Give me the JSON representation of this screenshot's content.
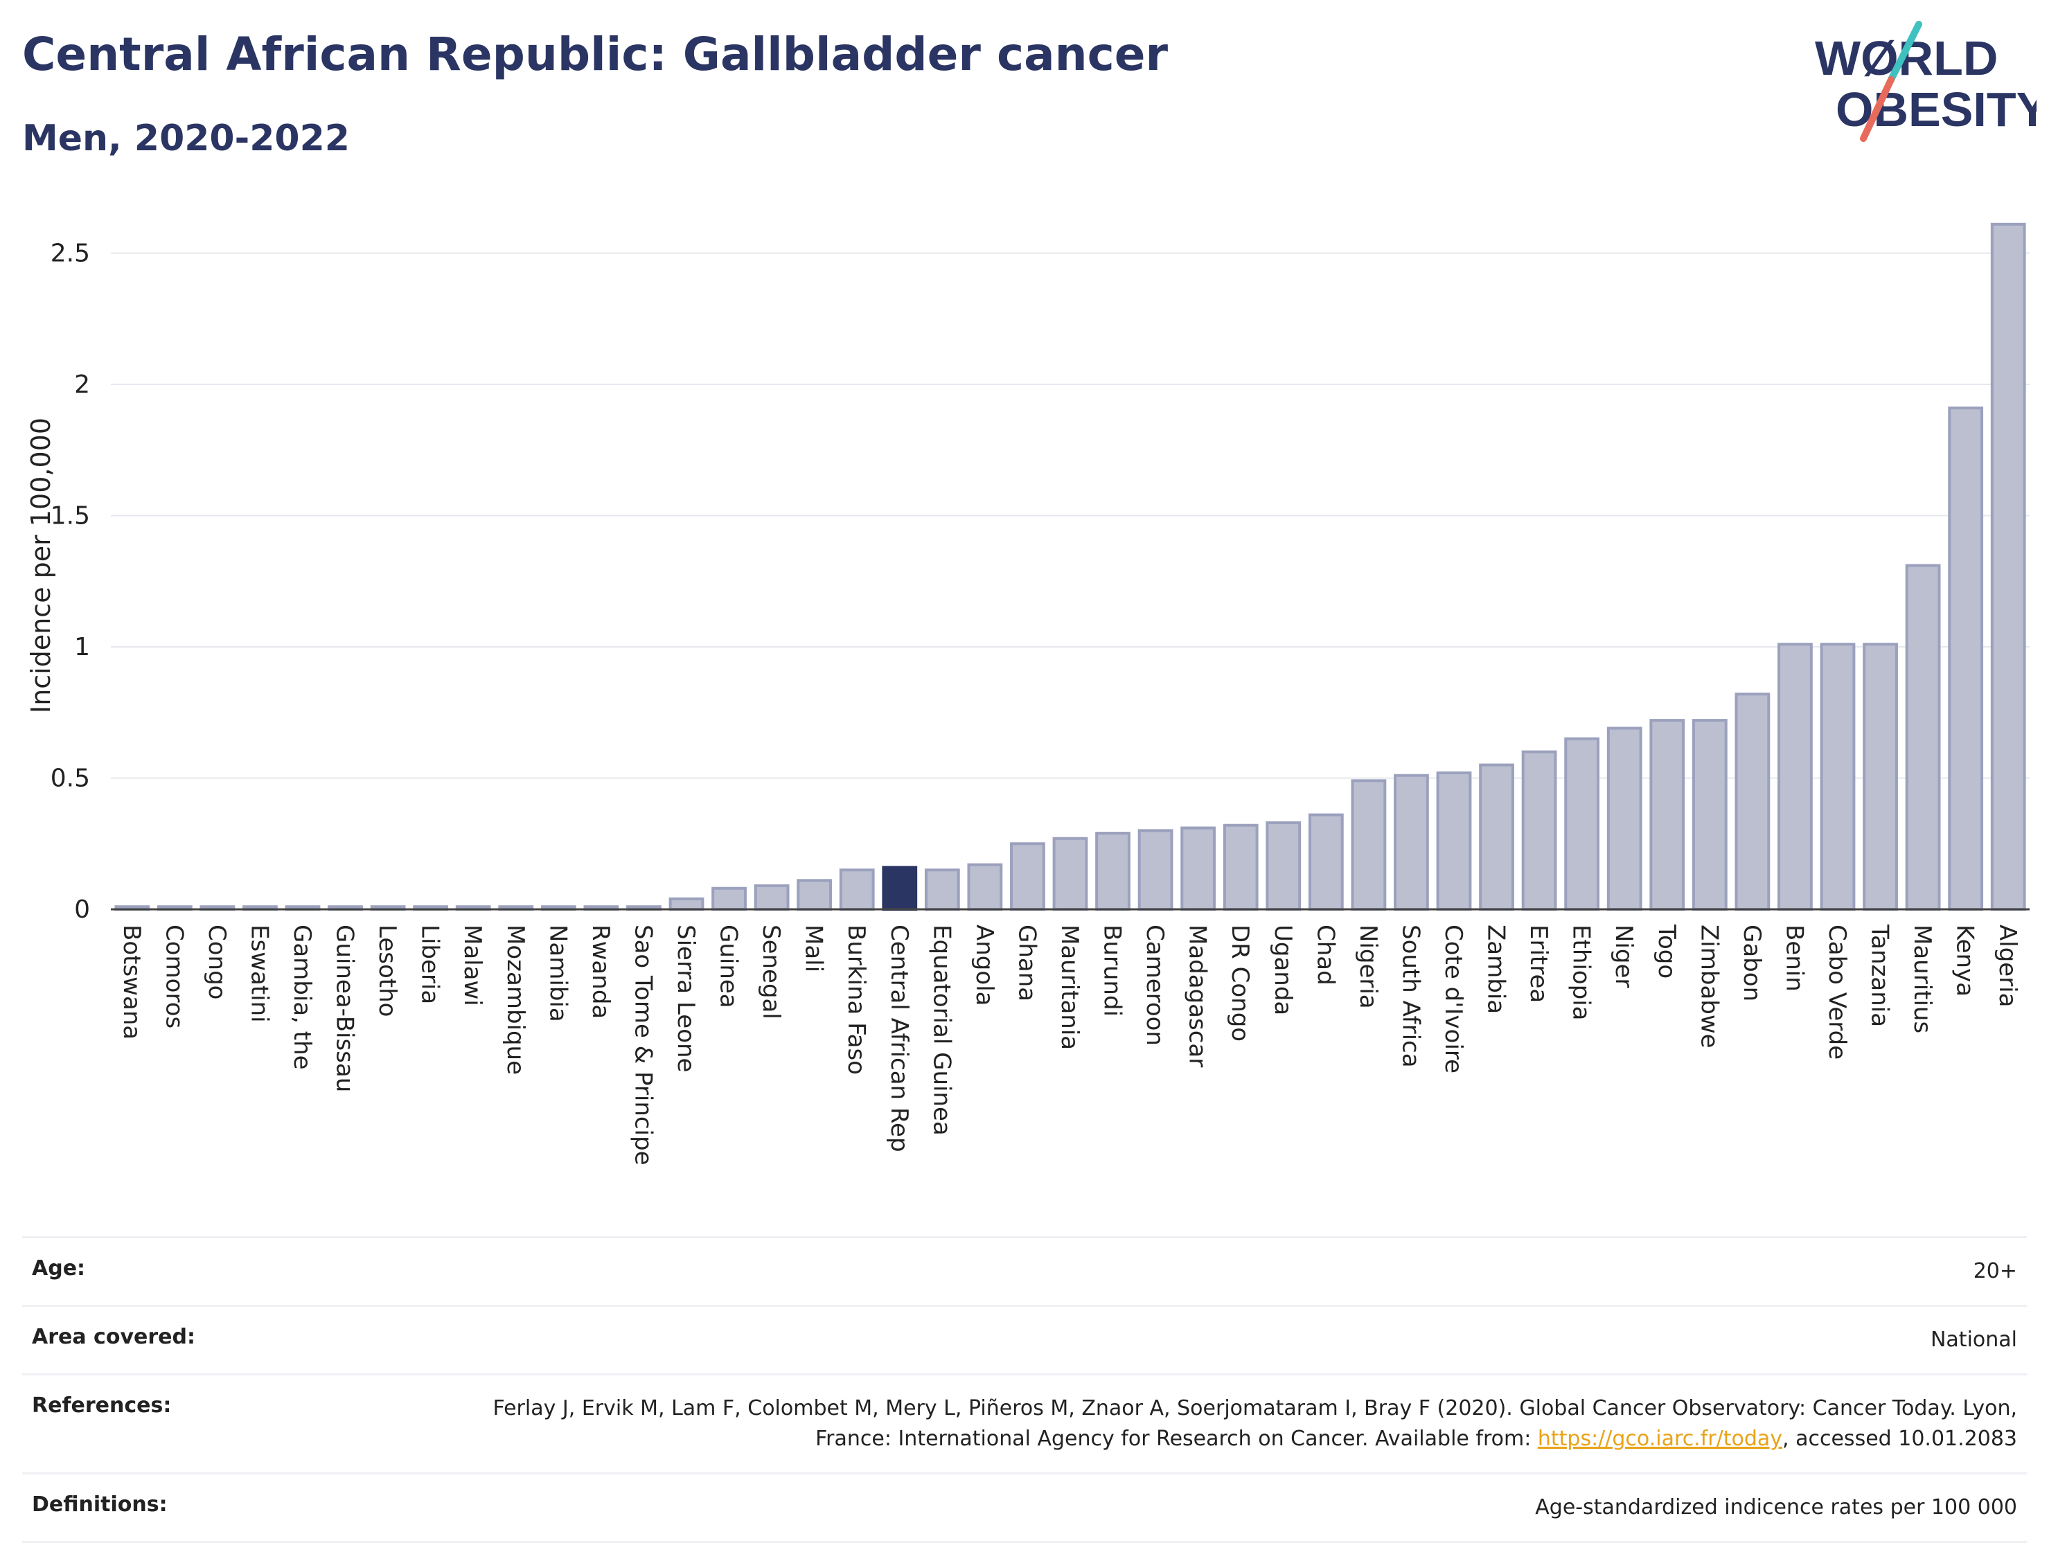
{
  "header": {
    "title": "Central African Republic: Gallbladder cancer",
    "subtitle": "Men, 2020-2022"
  },
  "logo": {
    "line1": "WØRLD",
    "line2": "OBESITY"
  },
  "colors": {
    "bar": "#bbbfcf",
    "bar_stroke": "#9ba1bd",
    "highlight": "#2b3563",
    "grid": "#e6e8ee",
    "text": "#2b3563"
  },
  "chart_data": {
    "type": "bar",
    "ylabel": "Incidence per 100,000",
    "ylim": [
      0,
      2.62
    ],
    "yticks": [
      0,
      0.5,
      1,
      1.5,
      2,
      2.5
    ],
    "ytick_labels": [
      "0",
      "0.5",
      "1",
      "1.5",
      "2",
      "2.5"
    ],
    "highlight": "Central African Rep",
    "categories": [
      "Botswana",
      "Comoros",
      "Congo",
      "Eswatini",
      "Gambia, the",
      "Guinea-Bissau",
      "Lesotho",
      "Liberia",
      "Malawi",
      "Mozambique",
      "Namibia",
      "Rwanda",
      "Sao Tome & Principe",
      "Sierra Leone",
      "Guinea",
      "Senegal",
      "Mali",
      "Burkina Faso",
      "Central African Rep",
      "Equatorial Guinea",
      "Angola",
      "Ghana",
      "Mauritania",
      "Burundi",
      "Cameroon",
      "Madagascar",
      "DR Congo",
      "Uganda",
      "Chad",
      "Nigeria",
      "South Africa",
      "Cote d'Ivoire",
      "Zambia",
      "Eritrea",
      "Ethiopia",
      "Niger",
      "Togo",
      "Zimbabwe",
      "Gabon",
      "Benin",
      "Cabo Verde",
      "Tanzania",
      "Mauritius",
      "Kenya",
      "Algeria"
    ],
    "values": [
      0.01,
      0.01,
      0.01,
      0.01,
      0.01,
      0.01,
      0.01,
      0.01,
      0.01,
      0.01,
      0.01,
      0.01,
      0.01,
      0.04,
      0.08,
      0.09,
      0.11,
      0.15,
      0.16,
      0.15,
      0.17,
      0.25,
      0.27,
      0.29,
      0.3,
      0.31,
      0.32,
      0.33,
      0.36,
      0.49,
      0.51,
      0.52,
      0.55,
      0.6,
      0.65,
      0.69,
      0.72,
      0.72,
      0.82,
      1.01,
      1.01,
      1.01,
      1.31,
      1.91,
      2.61
    ]
  },
  "info": {
    "age_label": "Age:",
    "age_value": "20+",
    "area_label": "Area covered:",
    "area_value": "National",
    "references_label": "References:",
    "references_text": "Ferlay J, Ervik M, Lam F, Colombet M, Mery L, Piñeros M, Znaor A, Soerjomataram I, Bray F (2020). Global Cancer Observatory: Cancer Today. Lyon, France: International Agency for Research on Cancer. Available from: ",
    "references_link": "https://gco.iarc.fr/today",
    "references_suffix": ", accessed 10.01.2083",
    "definitions_label": "Definitions:",
    "definitions_value": "Age-standardized indicence rates per 100 000"
  }
}
